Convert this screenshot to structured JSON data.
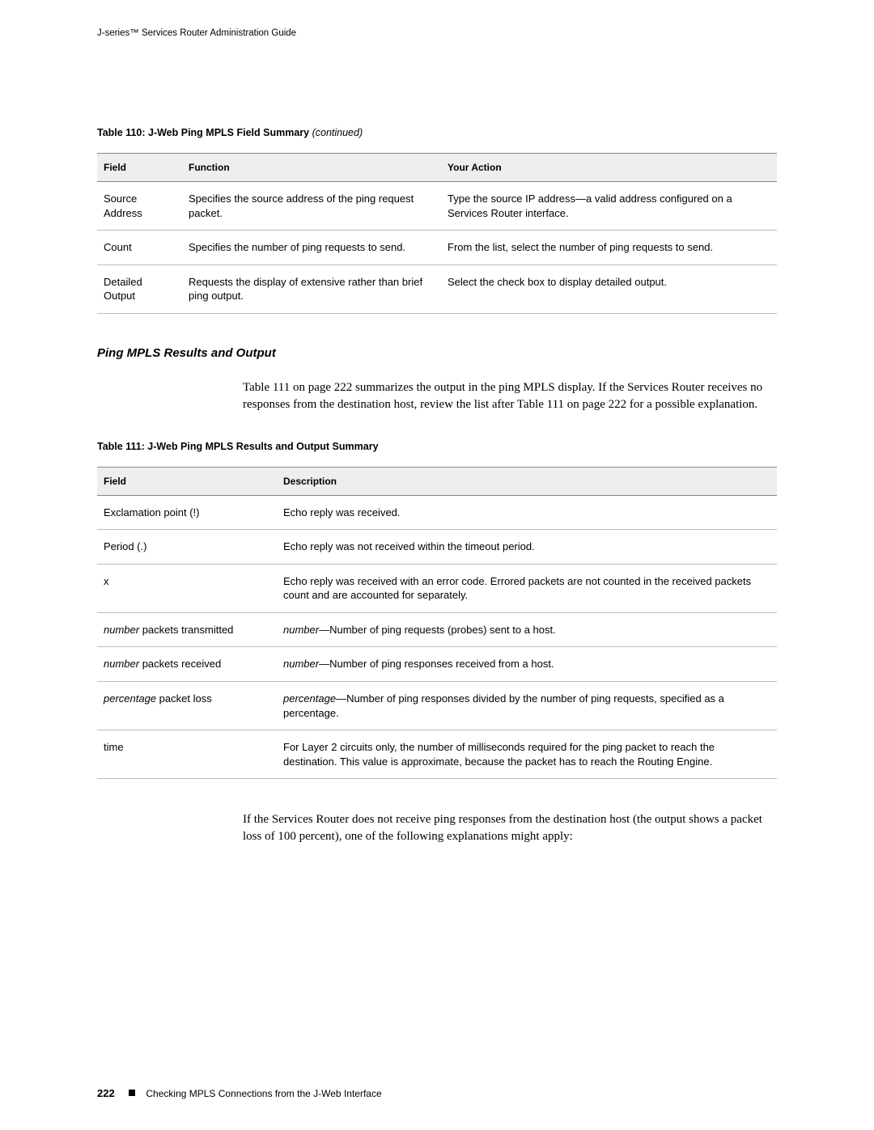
{
  "header": {
    "running_title": "J-series™ Services Router Administration Guide"
  },
  "table110": {
    "caption_main": "Table 110: J-Web Ping MPLS Field Summary ",
    "caption_cont": "(continued)",
    "columns": [
      "Field",
      "Function",
      "Your Action"
    ],
    "rows": [
      {
        "field": "Source Address",
        "function": "Specifies the source address of the ping request packet.",
        "action": "Type the source IP address—a valid address configured on a Services Router interface."
      },
      {
        "field": "Count",
        "function": "Specifies the number of ping requests to send.",
        "action": "From the list, select the number of ping requests to send."
      },
      {
        "field": "Detailed Output",
        "function": "Requests the display of extensive rather than brief ping output.",
        "action": "Select the check box to display detailed output."
      }
    ]
  },
  "section": {
    "heading": "Ping MPLS Results and Output",
    "para1": "Table 111 on page 222 summarizes the output in the ping MPLS display. If the Services Router receives no responses from the destination host, review the list after Table 111 on page 222 for a possible explanation."
  },
  "table111": {
    "caption": "Table 111: J-Web Ping MPLS Results and Output Summary",
    "columns": [
      "Field",
      "Description"
    ],
    "rows": [
      {
        "field_html": "Exclamation point (!)",
        "desc_html": "Echo reply was received."
      },
      {
        "field_html": "Period (.)",
        "desc_html": "Echo reply was not received within the timeout period."
      },
      {
        "field_html": "x",
        "desc_html": "Echo reply was received with an error code. Errored packets are not counted in the received packets count and are accounted for separately."
      },
      {
        "field_html": "<span class=\"italic\">number</span> packets transmitted",
        "desc_html": "<span class=\"italic\">number</span>—Number of ping requests (probes) sent to a host."
      },
      {
        "field_html": "<span class=\"italic\">number</span> packets received",
        "desc_html": "<span class=\"italic\">number</span>—Number of ping responses received from a host."
      },
      {
        "field_html": "<span class=\"italic\">percentage</span> packet loss",
        "desc_html": "<span class=\"italic\">percentage</span>—Number of ping responses divided by the number of ping requests, specified as a percentage."
      },
      {
        "field_html": "time",
        "desc_html": "For Layer 2 circuits only, the number of milliseconds required for the ping packet to reach the destination. This value is approximate, because the packet has to reach the Routing Engine."
      }
    ]
  },
  "para2": "If the Services Router does not receive ping responses from the destination host (the output shows a packet loss of 100 percent), one of the following explanations might apply:",
  "footer": {
    "page_number": "222",
    "section_title": "Checking MPLS Connections from the J-Web Interface"
  }
}
